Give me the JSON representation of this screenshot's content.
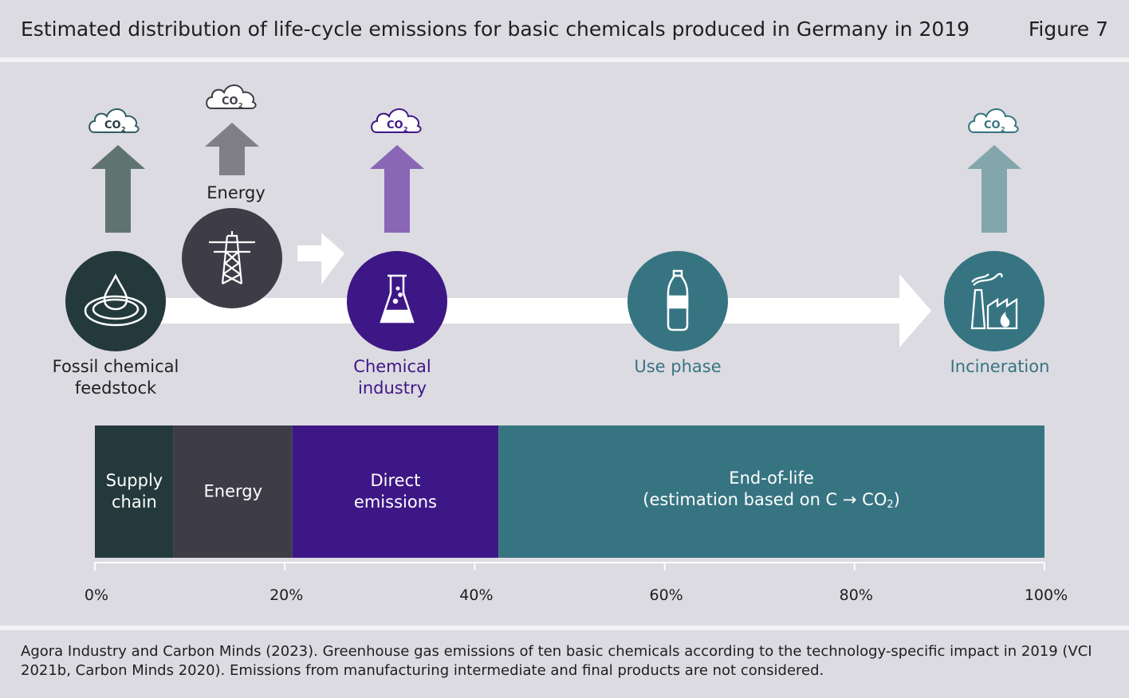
{
  "header": {
    "title": "Estimated distribution of life-cycle emissions for basic chemicals produced in Germany in 2019",
    "figure": "Figure 7"
  },
  "flow": {
    "co2_label": "CO",
    "co2_sub": "2",
    "stages": [
      {
        "name": "Fossil chemical",
        "name2": "feedstock",
        "color": "#24393c",
        "arrow_color": "#5f7471"
      },
      {
        "name": "Energy",
        "name2": "",
        "color": "#3e3d47",
        "arrow_color": "#807e86"
      },
      {
        "name": "Chemical",
        "name2": "industry",
        "color": "#3e1786",
        "arrow_color": "#8a66b6",
        "label_color": "#3e1786"
      },
      {
        "name": "Use phase",
        "name2": "",
        "color": "#377482",
        "label_color": "#377482"
      },
      {
        "name": "Incineration",
        "name2": "",
        "color": "#377482",
        "arrow_color": "#82a6ac",
        "label_color": "#377482"
      }
    ]
  },
  "chart_data": {
    "type": "bar",
    "orientation": "horizontal-stacked",
    "title": "Estimated distribution of life-cycle emissions for basic chemicals produced in Germany in 2019",
    "xlim": [
      0,
      100
    ],
    "ticks": [
      "0%",
      "20%",
      "40%",
      "60%",
      "80%",
      "100%"
    ],
    "tick_values": [
      0,
      20,
      40,
      60,
      80,
      100
    ],
    "series": [
      {
        "name": "Supply chain",
        "line1": "Supply",
        "line2": "chain",
        "start": 0,
        "value": 8.3,
        "color": "#24393c"
      },
      {
        "name": "Energy",
        "line1": "Energy",
        "line2": "",
        "start": 8.3,
        "value": 12.5,
        "color": "#3e3d47"
      },
      {
        "name": "Direct emissions",
        "line1": "Direct",
        "line2": "emissions",
        "start": 20.8,
        "value": 21.7,
        "color": "#3e1786"
      },
      {
        "name": "End-of-life (estimation based on C → CO2)",
        "line1": "End-of-life",
        "line2": "(estimation based on C → CO",
        "line2_sub": "2",
        "line2_end": ")",
        "start": 42.5,
        "value": 57.5,
        "color": "#377482"
      }
    ]
  },
  "footer": {
    "source": "Agora Industry and Carbon Minds (2023). Greenhouse gas emissions of ten basic chemicals according to the technology-specific impact in 2019 (VCI 2021b, Carbon Minds 2020). Emissions from manufacturing intermediate and final products are not considered."
  }
}
